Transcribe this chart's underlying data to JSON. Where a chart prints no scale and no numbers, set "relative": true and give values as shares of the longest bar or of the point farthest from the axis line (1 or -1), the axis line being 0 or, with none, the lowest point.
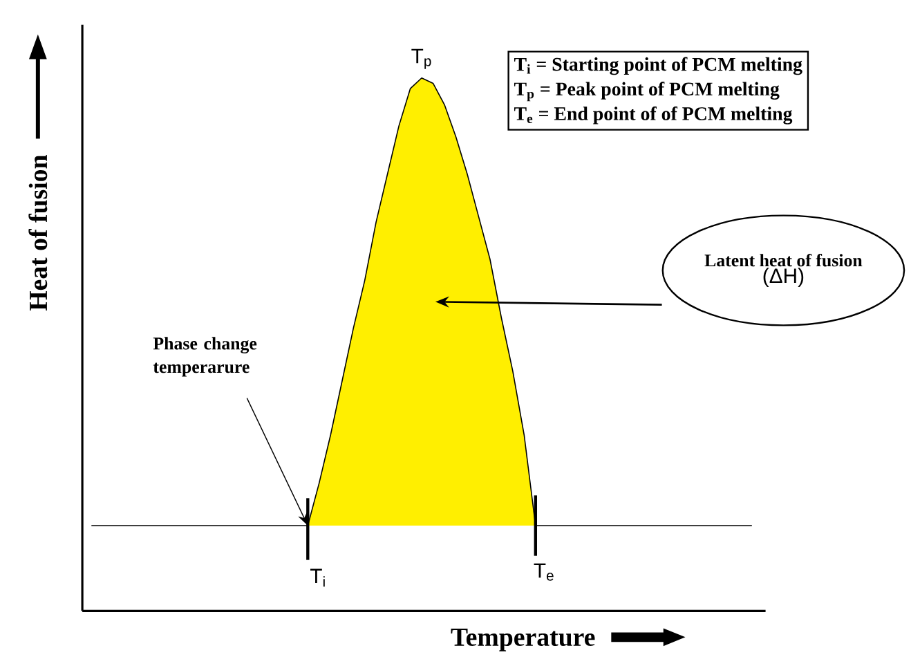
{
  "chart_data": {
    "type": "line",
    "relative": true,
    "xlabel": "Temperature",
    "ylabel": "Heat of fusion",
    "categories": [
      null,
      null,
      null,
      null,
      null,
      null,
      null,
      null,
      null,
      null,
      null,
      null,
      null,
      null,
      null,
      null,
      null,
      null,
      null,
      null,
      null,
      null,
      null,
      null,
      null,
      null,
      null,
      null,
      null,
      null,
      null,
      null,
      null,
      null,
      null,
      null,
      null,
      null,
      null,
      null,
      null,
      null,
      null,
      null,
      null,
      null,
      null,
      null,
      null,
      null,
      null,
      null,
      null,
      null,
      null,
      null,
      null,
      null,
      null
    ],
    "series": [
      {
        "color": "#000000",
        "values": [
          0.16,
          0.16,
          0.16,
          0.16,
          0.16,
          0.16,
          0.16,
          0.16,
          0.16,
          0.16,
          0.16,
          0.16,
          0.16,
          0.16,
          0.16,
          0.16,
          0.16,
          0.16,
          0.16,
          0.16,
          0.24,
          0.33,
          0.43,
          0.53,
          0.62,
          0.73,
          0.82,
          0.91,
          0.98,
          1.0,
          0.99,
          0.95,
          0.89,
          0.82,
          0.74,
          0.66,
          0.55,
          0.45,
          0.33,
          0.16,
          0.16,
          0.16,
          0.16,
          0.16,
          0.16,
          0.16,
          0.16,
          0.16,
          0.16,
          0.16,
          0.16,
          0.16,
          0.16,
          0.16,
          0.16,
          0.16,
          0.16,
          0.16,
          0.16
        ]
      },
      {
        "type": "area",
        "color": "#ffef00",
        "values": [
          null,
          null,
          null,
          null,
          null,
          null,
          null,
          null,
          null,
          null,
          null,
          null,
          null,
          null,
          null,
          null,
          null,
          null,
          null,
          0.16,
          0.24,
          0.33,
          0.43,
          0.53,
          0.62,
          0.73,
          0.82,
          0.91,
          0.98,
          1.0,
          0.99,
          0.95,
          0.89,
          0.82,
          0.74,
          0.66,
          0.55,
          0.45,
          0.33,
          0.16,
          null,
          null,
          null,
          null,
          null,
          null,
          null,
          null,
          null,
          null,
          null,
          null,
          null,
          null,
          null,
          null,
          null,
          null,
          null
        ]
      }
    ],
    "annotations": [
      "T$_{p}$",
      "T$_{i}$",
      "T$_{e}$",
      "T$_{i}$ = Starting point of PCM melting",
      "T$_{p}$ = Peak point of PCM melting",
      "T$_{e}$ = End point of of PCM melting",
      "Latent heat of fusion",
      "(ΔH)",
      "Phase change temperarure"
    ]
  }
}
